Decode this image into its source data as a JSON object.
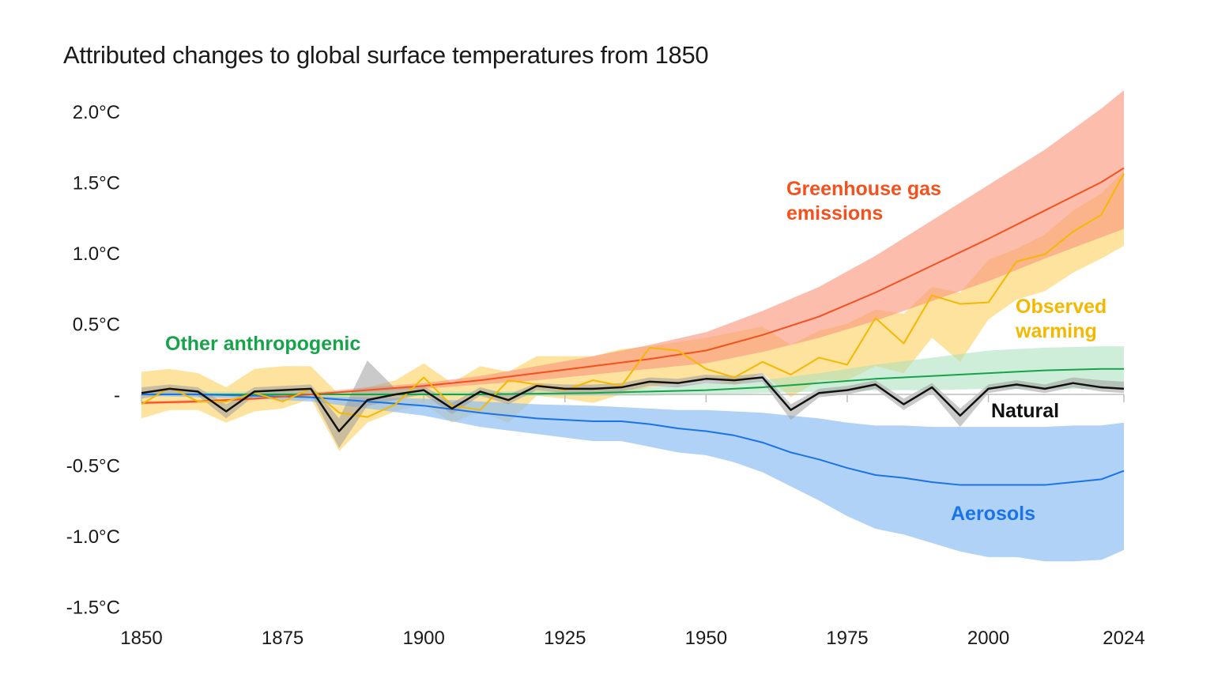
{
  "chart_data": {
    "type": "line",
    "title": "Attributed changes to global surface temperatures from 1850",
    "xlabel": "",
    "ylabel": "",
    "xlim": [
      1850,
      2024
    ],
    "ylim": [
      -1.5,
      2.0
    ],
    "x_ticks": [
      1850,
      1875,
      1900,
      1925,
      1950,
      1975,
      2000,
      2024
    ],
    "x_tick_labels": [
      "1850",
      "1875",
      "1900",
      "1925",
      "1950",
      "1975",
      "2000",
      "2024"
    ],
    "y_ticks": [
      2.0,
      1.5,
      1.0,
      0.5,
      0,
      -0.5,
      -1.0,
      -1.5
    ],
    "y_tick_labels": [
      "2.0°C",
      "1.5°C",
      "1.0°C",
      "0.5°C",
      "-",
      "-0.5°C",
      "-1.0°C",
      "-1.5°C"
    ],
    "grid": false,
    "legend": "inline labels",
    "series": [
      {
        "name": "Observed warming",
        "color": "#f5b800",
        "band_color": "#fcd46a",
        "x": [
          1850,
          1855,
          1860,
          1865,
          1870,
          1875,
          1880,
          1885,
          1890,
          1895,
          1900,
          1905,
          1910,
          1915,
          1920,
          1925,
          1930,
          1935,
          1940,
          1945,
          1950,
          1955,
          1960,
          1965,
          1970,
          1975,
          1980,
          1985,
          1990,
          1995,
          2000,
          2005,
          2010,
          2015,
          2020,
          2024
        ],
        "values": [
          -0.07,
          0.05,
          -0.05,
          -0.05,
          0.01,
          -0.05,
          0.04,
          -0.13,
          -0.16,
          -0.07,
          0.12,
          -0.08,
          -0.11,
          0.1,
          0.07,
          0.03,
          0.1,
          0.06,
          0.33,
          0.31,
          0.18,
          0.12,
          0.23,
          0.14,
          0.26,
          0.21,
          0.54,
          0.36,
          0.7,
          0.64,
          0.65,
          0.94,
          0.99,
          1.15,
          1.27,
          1.56
        ],
        "upper": [
          0.16,
          0.18,
          0.15,
          0.05,
          0.18,
          0.2,
          0.2,
          -0.0,
          0.05,
          0.1,
          0.22,
          0.08,
          0.2,
          0.16,
          0.27,
          0.27,
          0.27,
          0.32,
          0.34,
          0.37,
          0.4,
          0.44,
          0.48,
          0.35,
          0.45,
          0.5,
          0.6,
          0.57,
          0.76,
          0.72,
          0.95,
          1.03,
          1.13,
          1.3,
          1.42,
          1.58
        ],
        "lower": [
          -0.17,
          -0.11,
          -0.11,
          -0.2,
          -0.12,
          -0.1,
          -0.03,
          -0.4,
          -0.2,
          -0.12,
          -0.07,
          -0.2,
          -0.12,
          -0.2,
          -0.01,
          -0.03,
          -0.06,
          0.0,
          0.05,
          0.08,
          0.12,
          0.07,
          0.15,
          -0.02,
          0.1,
          0.1,
          0.2,
          0.15,
          0.4,
          0.23,
          0.53,
          0.67,
          0.73,
          0.86,
          0.96,
          1.05
        ]
      },
      {
        "name": "Greenhouse gas emissions",
        "color": "#f4511e",
        "band_color": "#fa9a80",
        "x": [
          1850,
          1860,
          1870,
          1880,
          1890,
          1900,
          1910,
          1920,
          1930,
          1940,
          1950,
          1960,
          1970,
          1980,
          1990,
          2000,
          2010,
          2020,
          2024
        ],
        "values": [
          -0.06,
          -0.05,
          -0.03,
          0.0,
          0.03,
          0.06,
          0.1,
          0.15,
          0.2,
          0.25,
          0.31,
          0.42,
          0.55,
          0.72,
          0.91,
          1.1,
          1.3,
          1.5,
          1.6
        ],
        "upper": [
          -0.05,
          -0.04,
          -0.02,
          0.01,
          0.05,
          0.08,
          0.13,
          0.2,
          0.27,
          0.35,
          0.44,
          0.59,
          0.76,
          0.98,
          1.23,
          1.48,
          1.73,
          2.02,
          2.15
        ],
        "lower": [
          -0.07,
          -0.06,
          -0.04,
          -0.01,
          0.02,
          0.04,
          0.07,
          0.1,
          0.14,
          0.18,
          0.22,
          0.3,
          0.4,
          0.52,
          0.66,
          0.8,
          0.96,
          1.11,
          1.17
        ]
      },
      {
        "name": "Aerosols",
        "color": "#1a73e8",
        "band_color": "#8fbff2",
        "x": [
          1850,
          1860,
          1870,
          1880,
          1890,
          1900,
          1910,
          1920,
          1930,
          1935,
          1940,
          1945,
          1950,
          1955,
          1960,
          1965,
          1970,
          1975,
          1980,
          1985,
          1990,
          1995,
          2000,
          2005,
          2010,
          2015,
          2020,
          2024
        ],
        "values": [
          0.0,
          0.0,
          -0.01,
          -0.02,
          -0.05,
          -0.08,
          -0.13,
          -0.17,
          -0.19,
          -0.19,
          -0.21,
          -0.24,
          -0.26,
          -0.29,
          -0.34,
          -0.41,
          -0.46,
          -0.52,
          -0.57,
          -0.59,
          -0.62,
          -0.64,
          -0.64,
          -0.64,
          -0.64,
          -0.62,
          -0.6,
          -0.54
        ],
        "upper": [
          0.01,
          0.01,
          0.0,
          -0.01,
          -0.02,
          -0.03,
          -0.05,
          -0.07,
          -0.08,
          -0.09,
          -0.1,
          -0.11,
          -0.11,
          -0.12,
          -0.13,
          -0.15,
          -0.17,
          -0.2,
          -0.22,
          -0.22,
          -0.23,
          -0.23,
          -0.23,
          -0.23,
          -0.23,
          -0.22,
          -0.22,
          -0.2
        ],
        "lower": [
          -0.01,
          -0.02,
          -0.03,
          -0.05,
          -0.1,
          -0.15,
          -0.23,
          -0.28,
          -0.33,
          -0.33,
          -0.37,
          -0.41,
          -0.43,
          -0.48,
          -0.55,
          -0.65,
          -0.75,
          -0.86,
          -0.95,
          -0.99,
          -1.05,
          -1.11,
          -1.15,
          -1.15,
          -1.18,
          -1.18,
          -1.17,
          -1.1
        ]
      },
      {
        "name": "Other anthropogenic",
        "color": "#16a34a",
        "band_color": "#a8e0bb",
        "x": [
          1850,
          1870,
          1890,
          1910,
          1930,
          1940,
          1950,
          1960,
          1970,
          1980,
          1990,
          2000,
          2010,
          2020,
          2024
        ],
        "values": [
          0.0,
          0.0,
          0.0,
          0.0,
          0.01,
          0.02,
          0.03,
          0.05,
          0.08,
          0.11,
          0.13,
          0.15,
          0.17,
          0.18,
          0.18
        ],
        "upper": [
          0.02,
          0.02,
          0.02,
          0.02,
          0.03,
          0.05,
          0.08,
          0.1,
          0.15,
          0.21,
          0.26,
          0.31,
          0.33,
          0.34,
          0.34
        ],
        "lower": [
          -0.01,
          -0.01,
          -0.01,
          -0.01,
          -0.01,
          -0.01,
          0.0,
          0.01,
          0.02,
          0.03,
          0.03,
          0.04,
          0.04,
          0.04,
          0.04
        ]
      },
      {
        "name": "Natural",
        "color": "#111111",
        "band_color": "#9e9e9e",
        "x": [
          1850,
          1855,
          1860,
          1865,
          1870,
          1875,
          1880,
          1885,
          1890,
          1895,
          1900,
          1905,
          1910,
          1915,
          1920,
          1925,
          1930,
          1935,
          1940,
          1945,
          1950,
          1955,
          1960,
          1965,
          1970,
          1975,
          1980,
          1985,
          1990,
          1995,
          2000,
          2005,
          2010,
          2015,
          2020,
          2024
        ],
        "values": [
          0.01,
          0.04,
          0.02,
          -0.12,
          0.02,
          0.03,
          0.04,
          -0.26,
          -0.04,
          0.0,
          0.03,
          -0.1,
          0.02,
          -0.04,
          0.06,
          0.04,
          0.04,
          0.05,
          0.09,
          0.08,
          0.11,
          0.1,
          0.12,
          -0.11,
          0.01,
          0.03,
          0.07,
          -0.07,
          0.05,
          -0.15,
          0.04,
          0.07,
          0.04,
          0.08,
          0.05,
          0.04
        ],
        "upper": [
          0.05,
          0.07,
          0.05,
          -0.07,
          0.05,
          0.06,
          0.07,
          -0.17,
          0.24,
          0.04,
          0.06,
          -0.06,
          0.05,
          0.0,
          0.08,
          0.07,
          0.07,
          0.08,
          0.12,
          0.11,
          0.14,
          0.13,
          0.15,
          -0.07,
          0.04,
          0.06,
          0.1,
          -0.03,
          0.08,
          -0.1,
          0.07,
          0.1,
          0.07,
          0.12,
          0.1,
          0.09
        ],
        "lower": [
          -0.03,
          0.0,
          -0.01,
          -0.17,
          -0.01,
          0.0,
          0.01,
          -0.38,
          -0.08,
          -0.04,
          0.0,
          -0.14,
          -0.01,
          -0.07,
          0.03,
          0.01,
          0.01,
          0.02,
          0.06,
          0.05,
          0.08,
          0.07,
          0.09,
          -0.18,
          -0.02,
          0.0,
          0.04,
          -0.11,
          0.01,
          -0.23,
          0.01,
          0.04,
          0.01,
          0.05,
          0.02,
          0.01
        ]
      }
    ],
    "annotations": {
      "ghg_line1": "Greenhouse gas",
      "ghg_line2": "emissions",
      "observed_line1": "Observed",
      "observed_line2": "warming",
      "other": "Other anthropogenic",
      "natural": "Natural",
      "aerosols": "Aerosols"
    }
  }
}
